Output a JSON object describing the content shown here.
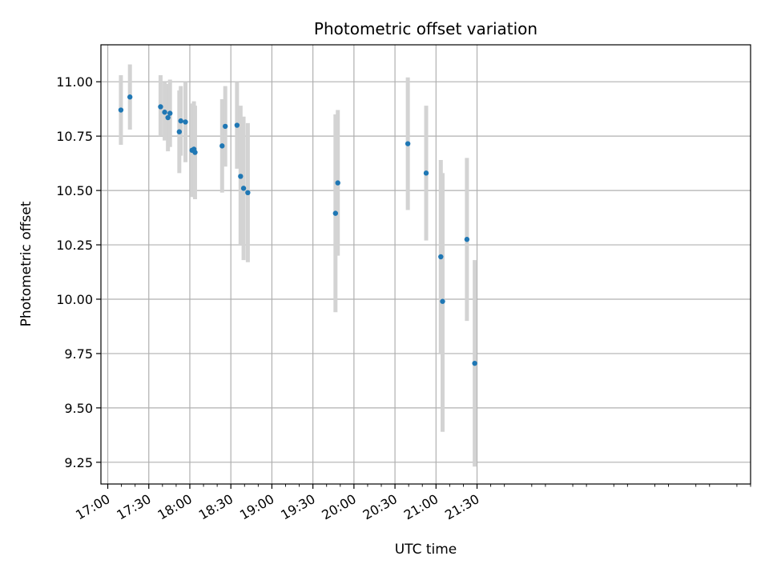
{
  "chart_data": {
    "type": "scatter",
    "title": "Photometric offset variation",
    "xlabel": "UTC time",
    "ylabel": "Photometric offset",
    "x_unit": "minutes since 17:00 UTC",
    "xlim": [
      -5,
      470
    ],
    "ylim": [
      9.15,
      11.17
    ],
    "x_ticks": [
      {
        "value": 0,
        "label": "17:00"
      },
      {
        "value": 30,
        "label": "17:30"
      },
      {
        "value": 60,
        "label": "18:00"
      },
      {
        "value": 90,
        "label": "18:30"
      },
      {
        "value": 120,
        "label": "19:00"
      },
      {
        "value": 150,
        "label": "19:30"
      },
      {
        "value": 180,
        "label": "20:00"
      },
      {
        "value": 210,
        "label": "20:30"
      },
      {
        "value": 240,
        "label": "21:00"
      },
      {
        "value": 270,
        "label": "21:30"
      }
    ],
    "y_ticks": [
      {
        "value": 9.25,
        "label": "9.25"
      },
      {
        "value": 9.5,
        "label": "9.50"
      },
      {
        "value": 9.75,
        "label": "9.75"
      },
      {
        "value": 10.0,
        "label": "10.00"
      },
      {
        "value": 10.25,
        "label": "10.25"
      },
      {
        "value": 10.5,
        "label": "10.50"
      },
      {
        "value": 10.75,
        "label": "10.75"
      },
      {
        "value": 11.0,
        "label": "11.00"
      }
    ],
    "grid": true,
    "point_color": "#1f77b4",
    "errorbar_color": "#d3d3d3",
    "series": [
      {
        "name": "offset",
        "points": [
          {
            "x": 9.6,
            "y": 10.87,
            "lo": 10.71,
            "hi": 11.03
          },
          {
            "x": 16.2,
            "y": 10.93,
            "lo": 10.78,
            "hi": 11.08
          },
          {
            "x": 38.6,
            "y": 10.885,
            "lo": 10.75,
            "hi": 11.03
          },
          {
            "x": 41.6,
            "y": 10.86,
            "lo": 10.73,
            "hi": 11.0
          },
          {
            "x": 44.0,
            "y": 10.835,
            "lo": 10.68,
            "hi": 10.99
          },
          {
            "x": 45.5,
            "y": 10.855,
            "lo": 10.7,
            "hi": 11.01
          },
          {
            "x": 52.3,
            "y": 10.77,
            "lo": 10.58,
            "hi": 10.96
          },
          {
            "x": 53.4,
            "y": 10.82,
            "lo": 10.66,
            "hi": 10.98
          },
          {
            "x": 56.8,
            "y": 10.815,
            "lo": 10.63,
            "hi": 11.0
          },
          {
            "x": 61.6,
            "y": 10.685,
            "lo": 10.47,
            "hi": 10.9
          },
          {
            "x": 63.0,
            "y": 10.69,
            "lo": 10.47,
            "hi": 10.91
          },
          {
            "x": 63.8,
            "y": 10.675,
            "lo": 10.46,
            "hi": 10.89
          },
          {
            "x": 83.6,
            "y": 10.705,
            "lo": 10.49,
            "hi": 10.92
          },
          {
            "x": 85.9,
            "y": 10.795,
            "lo": 10.61,
            "hi": 10.98
          },
          {
            "x": 94.5,
            "y": 10.8,
            "lo": 10.6,
            "hi": 11.0
          },
          {
            "x": 97.1,
            "y": 10.565,
            "lo": 10.25,
            "hi": 10.89
          },
          {
            "x": 99.3,
            "y": 10.51,
            "lo": 10.18,
            "hi": 10.84
          },
          {
            "x": 102.4,
            "y": 10.49,
            "lo": 10.17,
            "hi": 10.81
          },
          {
            "x": 166.5,
            "y": 10.395,
            "lo": 9.94,
            "hi": 10.85
          },
          {
            "x": 168.2,
            "y": 10.535,
            "lo": 10.2,
            "hi": 10.87
          },
          {
            "x": 219.4,
            "y": 10.715,
            "lo": 10.41,
            "hi": 11.02
          },
          {
            "x": 232.8,
            "y": 10.58,
            "lo": 10.27,
            "hi": 10.89
          },
          {
            "x": 243.5,
            "y": 10.195,
            "lo": 9.75,
            "hi": 10.64
          },
          {
            "x": 244.8,
            "y": 9.99,
            "lo": 9.39,
            "hi": 10.58
          },
          {
            "x": 262.6,
            "y": 10.275,
            "lo": 9.9,
            "hi": 10.65
          },
          {
            "x": 268.3,
            "y": 9.705,
            "lo": 9.23,
            "hi": 10.18
          }
        ]
      }
    ]
  }
}
